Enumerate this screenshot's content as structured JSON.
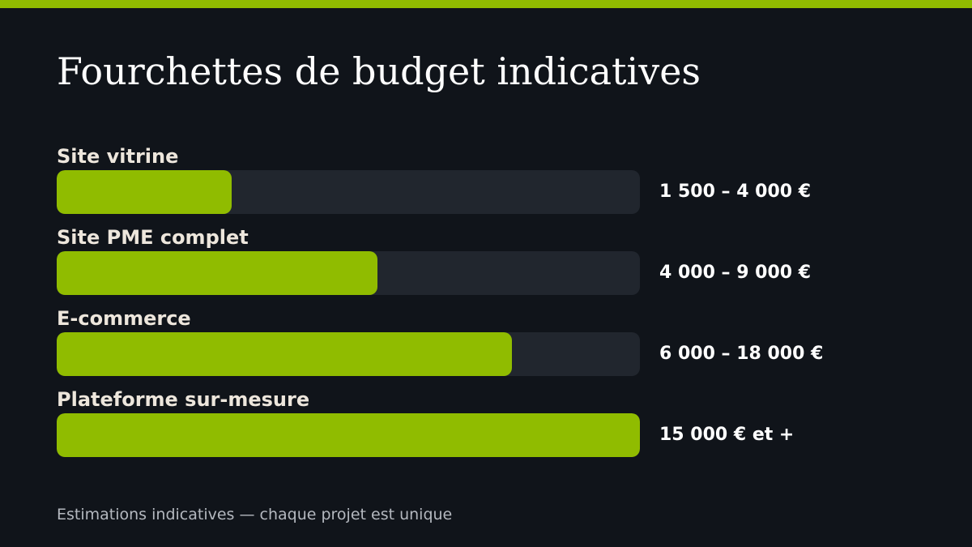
{
  "title": "Fourchettes de budget indicatives",
  "footnote": "Estimations indicatives — chaque projet est unique",
  "colors": {
    "background": "#10141a",
    "accent": "#90bc00",
    "track": "#21262e",
    "label": "#ede6dc",
    "value": "#ffffff",
    "footnote": "#b4b8bf"
  },
  "chart_data": {
    "type": "bar",
    "orientation": "horizontal",
    "title": "Fourchettes de budget indicatives",
    "categories": [
      "Site vitrine",
      "Site PME complet",
      "E-commerce",
      "Plateforme sur-mesure"
    ],
    "value_labels": [
      "1 500 – 4 000 €",
      "4 000 – 9 000 €",
      "6 000 – 18 000 €",
      "15 000 € et +"
    ],
    "values": [
      0.3,
      0.55,
      0.78,
      1.0
    ],
    "value_unit": "fraction of full bar",
    "grid": false,
    "legend": "none"
  }
}
